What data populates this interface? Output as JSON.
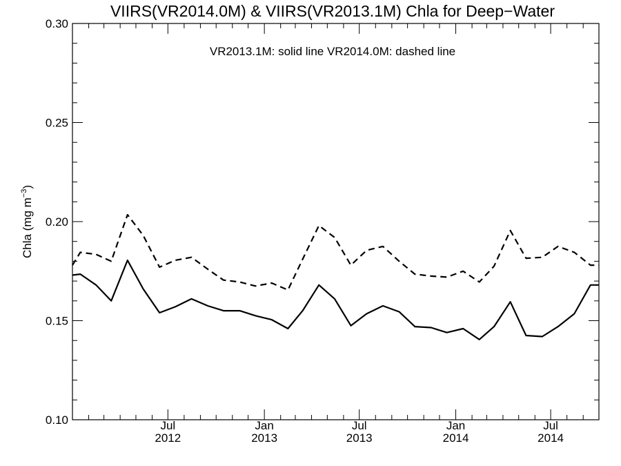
{
  "chart_data": {
    "type": "line",
    "title": "VIIRS(VR2014.0M) & VIIRS(VR2013.1M)  Chla for Deep−Water",
    "annotation": "VR2013.1M: solid line   VR2014.0M: dashed line",
    "ylabel_main": "Chla (mg m",
    "ylabel_exp": "−3",
    "ylabel_close": ")",
    "ylim": [
      0.1,
      0.3
    ],
    "xlim": [
      "2012-01-01",
      "2014-10-01"
    ],
    "grid": false,
    "yticks": [
      {
        "value": 0.1,
        "label": "0.10"
      },
      {
        "value": 0.15,
        "label": "0.15"
      },
      {
        "value": 0.2,
        "label": "0.20"
      },
      {
        "value": 0.25,
        "label": "0.25"
      },
      {
        "value": 0.3,
        "label": "0.30"
      }
    ],
    "xticks": [
      {
        "value": "2012-07-01",
        "month": "Jul",
        "year": "2012"
      },
      {
        "value": "2013-01-01",
        "month": "Jan",
        "year": "2013"
      },
      {
        "value": "2013-07-01",
        "month": "Jul",
        "year": "2013"
      },
      {
        "value": "2014-01-01",
        "month": "Jan",
        "year": "2014"
      },
      {
        "value": "2014-07-01",
        "month": "Jul",
        "year": "2014"
      }
    ],
    "x": [
      "2012-01-01",
      "2012-01-16",
      "2012-02-15",
      "2012-03-15",
      "2012-04-15",
      "2012-05-15",
      "2012-06-15",
      "2012-07-15",
      "2012-08-15",
      "2012-09-15",
      "2012-10-15",
      "2012-11-15",
      "2012-12-15",
      "2013-01-15",
      "2013-02-15",
      "2013-03-15",
      "2013-04-15",
      "2013-05-15",
      "2013-06-15",
      "2013-07-15",
      "2013-08-15",
      "2013-09-15",
      "2013-10-15",
      "2013-11-15",
      "2013-12-15",
      "2014-01-15",
      "2014-02-15",
      "2014-03-15",
      "2014-04-15",
      "2014-05-15",
      "2014-06-15",
      "2014-07-15",
      "2014-08-15",
      "2014-09-15",
      "2014-10-01"
    ],
    "series": [
      {
        "style": "solid",
        "values": [
          0.173,
          0.1735,
          0.168,
          0.16,
          0.1805,
          0.166,
          0.154,
          0.157,
          0.161,
          0.1575,
          0.155,
          0.155,
          0.1525,
          0.1505,
          0.146,
          0.155,
          0.168,
          0.161,
          0.1475,
          0.1535,
          0.1575,
          0.1545,
          0.147,
          0.1465,
          0.144,
          0.146,
          0.1405,
          0.147,
          0.1595,
          0.1425,
          0.142,
          0.147,
          0.1535,
          0.168,
          0.168
        ]
      },
      {
        "style": "dashed",
        "values": [
          0.178,
          0.1845,
          0.1835,
          0.18,
          0.2035,
          0.193,
          0.177,
          0.1805,
          0.182,
          0.176,
          0.1705,
          0.1695,
          0.1675,
          0.169,
          0.1655,
          0.181,
          0.198,
          0.192,
          0.178,
          0.1855,
          0.1875,
          0.18,
          0.1735,
          0.1725,
          0.172,
          0.175,
          0.1695,
          0.1775,
          0.1955,
          0.1815,
          0.182,
          0.1875,
          0.1845,
          0.178,
          0.178
        ]
      }
    ]
  }
}
